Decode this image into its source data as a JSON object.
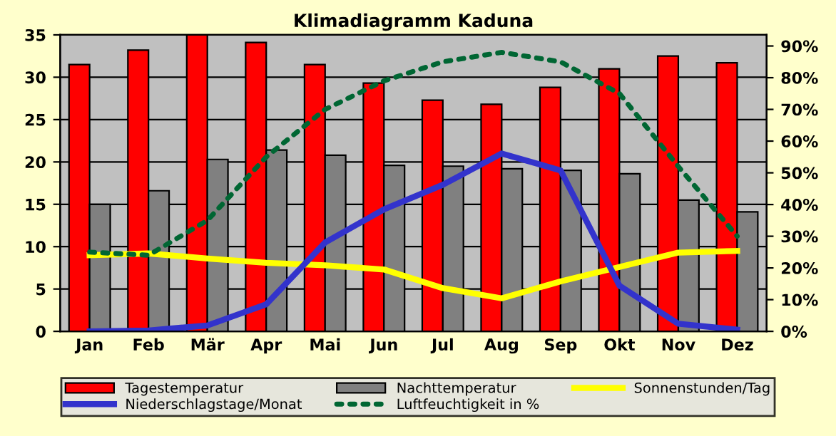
{
  "chart_data": {
    "type": "bar",
    "title": "Klimadiagramm Kaduna",
    "categories": [
      "Jan",
      "Feb",
      "Mär",
      "Apr",
      "Mai",
      "Jun",
      "Jul",
      "Aug",
      "Sep",
      "Okt",
      "Nov",
      "Dez"
    ],
    "series": [
      {
        "name": "Tagestemperatur",
        "color": "#ff0000",
        "values": [
          31.5,
          33.2,
          35.0,
          34.1,
          31.5,
          29.3,
          27.3,
          26.8,
          28.8,
          31.0,
          32.5,
          31.7
        ]
      },
      {
        "name": "Nachttemperatur",
        "color": "#808080",
        "values": [
          15.0,
          16.6,
          20.3,
          21.4,
          20.8,
          19.6,
          19.5,
          19.2,
          19.0,
          18.6,
          15.5,
          14.1
        ]
      },
      {
        "name": "Sonnenstunden/Tag",
        "type": "line",
        "color": "#ffff00",
        "line_style": "solid",
        "values": [
          9.0,
          9.2,
          8.6,
          8.1,
          7.8,
          7.3,
          5.1,
          3.9,
          5.9,
          7.6,
          9.3,
          9.5
        ]
      },
      {
        "name": "Niederschlagstage/Monat",
        "type": "line",
        "color": "#3333cc",
        "line_style": "solid",
        "values": [
          0.0,
          0.1,
          0.7,
          3.2,
          10.5,
          14.4,
          17.3,
          21.0,
          19.0,
          5.4,
          0.9,
          0.2
        ]
      },
      {
        "name": "Luftfeuchtigkeit in %",
        "type": "line",
        "axis": "y2",
        "color": "#006633",
        "line_style": "dotted",
        "values": [
          25,
          24,
          35,
          55,
          70,
          79,
          85,
          88,
          85,
          75,
          52,
          30
        ]
      }
    ],
    "ylim": [
      0,
      35
    ],
    "yticks": [
      0,
      5,
      10,
      15,
      20,
      25,
      30,
      35
    ],
    "y2lim": [
      0,
      93.5
    ],
    "y2ticks": [
      {
        "value": 0,
        "label": "0%"
      },
      {
        "value": 10,
        "label": "10%"
      },
      {
        "value": 20,
        "label": "20%"
      },
      {
        "value": 30,
        "label": "30%"
      },
      {
        "value": 40,
        "label": "40%"
      },
      {
        "value": 50,
        "label": "50%"
      },
      {
        "value": 60,
        "label": "60%"
      },
      {
        "value": 70,
        "label": "70%"
      },
      {
        "value": 80,
        "label": "80%"
      },
      {
        "value": 90,
        "label": "90%"
      }
    ],
    "grid": "y",
    "legend": "bottom",
    "marker": "none"
  }
}
